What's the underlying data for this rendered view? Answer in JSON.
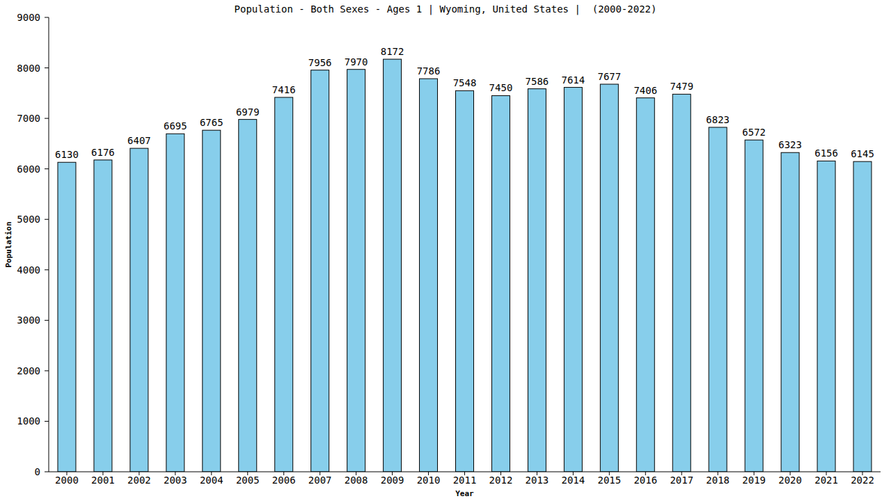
{
  "chart_data": {
    "type": "bar",
    "title": "Population - Both Sexes - Ages 1 | Wyoming, United States |  (2000-2022)",
    "x_label": "Year",
    "y_label": "Population",
    "categories": [
      "2000",
      "2001",
      "2002",
      "2003",
      "2004",
      "2005",
      "2006",
      "2007",
      "2008",
      "2009",
      "2010",
      "2011",
      "2012",
      "2013",
      "2014",
      "2015",
      "2016",
      "2017",
      "2018",
      "2019",
      "2020",
      "2021",
      "2022"
    ],
    "values": [
      6130,
      6176,
      6407,
      6695,
      6765,
      6979,
      7416,
      7956,
      7970,
      8172,
      7786,
      7548,
      7450,
      7586,
      7614,
      7677,
      7406,
      7479,
      6823,
      6572,
      6323,
      6156,
      6145
    ],
    "color": "#87ceeb",
    "ylim": [
      0,
      9000
    ],
    "yticks": [
      0,
      1000,
      2000,
      3000,
      4000,
      5000,
      6000,
      7000,
      8000,
      9000
    ],
    "grid": false,
    "data_labels": true
  }
}
